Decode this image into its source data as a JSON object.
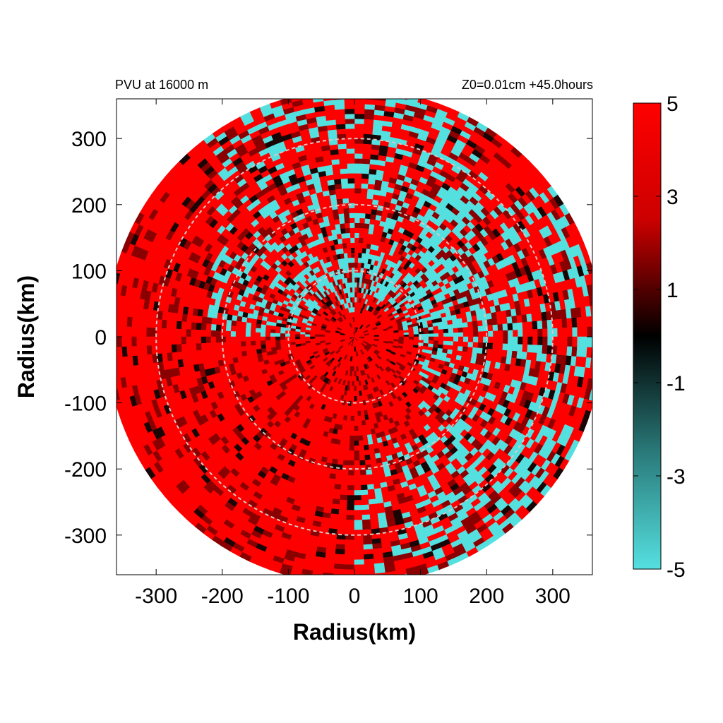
{
  "chart_data": {
    "type": "heatmap",
    "title_left": "PVU at 16000 m",
    "title_right": "Z0=0.01cm  +45.0hours",
    "xlabel": "Radius(km)",
    "ylabel": "Radius(km)",
    "xlim": [
      -360,
      360
    ],
    "ylim": [
      -360,
      360
    ],
    "x_ticks": [
      -300,
      -200,
      -100,
      0,
      100,
      200,
      300
    ],
    "y_ticks": [
      300,
      200,
      100,
      0,
      -100,
      -200,
      -300
    ],
    "domain_radius_km": 375,
    "reference_circles_km": [
      100,
      200,
      300
    ],
    "colorbar": {
      "min": -5,
      "max": 5,
      "ticks": [
        5,
        3,
        1,
        -1,
        -3,
        -5
      ],
      "colors": [
        {
          "value": 5,
          "color": "#ff0000"
        },
        {
          "value": 2.5,
          "color": "#cc0000"
        },
        {
          "value": 0,
          "color": "#000000"
        },
        {
          "value": -2.5,
          "color": "#2a7a7a"
        },
        {
          "value": -5,
          "color": "#55e0e0"
        }
      ]
    },
    "field_colors": {
      "positive": "#ff0000",
      "dark_positive": "#8a0000",
      "near_zero": "#1a0505",
      "negative": "#55e0e0"
    }
  }
}
